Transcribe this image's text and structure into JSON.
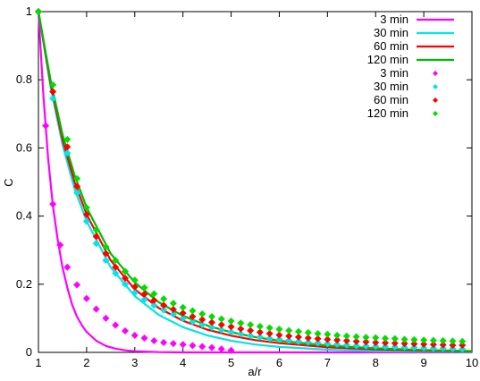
{
  "chart_data": {
    "type": "line",
    "xlabel": "a/r",
    "ylabel": "C",
    "xlim": [
      1,
      10
    ],
    "ylim": [
      0,
      1
    ],
    "x_ticks": [
      1,
      2,
      3,
      4,
      5,
      6,
      7,
      8,
      9,
      10
    ],
    "y_ticks": [
      0,
      0.2,
      0.4,
      0.6,
      0.8,
      1
    ],
    "x_tick_labels": [
      "1",
      "2",
      "3",
      "4",
      "5",
      "6",
      "7",
      "8",
      "9",
      "10"
    ],
    "y_tick_labels": [
      "0",
      "0.2",
      "0.4",
      "0.6",
      "0.8",
      "1"
    ],
    "legend_position": "top-right",
    "line_series": [
      {
        "name": "3 min",
        "color": "#ff00ff",
        "x": [
          1,
          1.1,
          1.2,
          1.3,
          1.4,
          1.5,
          1.6,
          1.7,
          1.8,
          1.9,
          2.0,
          2.2,
          2.4,
          2.6,
          2.8,
          3.0,
          3.5,
          4.0,
          5.0,
          6.0,
          8.0,
          10.0
        ],
        "y": [
          1.0,
          0.76,
          0.57,
          0.43,
          0.33,
          0.25,
          0.19,
          0.14,
          0.105,
          0.08,
          0.06,
          0.034,
          0.019,
          0.011,
          0.006,
          0.0035,
          0.0007,
          0.0001,
          0,
          0,
          0,
          0
        ]
      },
      {
        "name": "30 min",
        "color": "#00e5e5",
        "x": [
          1,
          1.25,
          1.5,
          1.75,
          2.0,
          2.5,
          3.0,
          3.5,
          4.0,
          4.5,
          5.0,
          5.5,
          6.0,
          7.0,
          8.0,
          9.0,
          10.0
        ],
        "y": [
          1.0,
          0.78,
          0.61,
          0.48,
          0.385,
          0.25,
          0.165,
          0.11,
          0.074,
          0.05,
          0.034,
          0.023,
          0.016,
          0.008,
          0.004,
          0.002,
          0.001
        ]
      },
      {
        "name": "60 min",
        "color": "#ff0000",
        "x": [
          1,
          1.25,
          1.5,
          1.75,
          2.0,
          2.5,
          3.0,
          3.5,
          4.0,
          4.5,
          5.0,
          5.5,
          6.0,
          7.0,
          8.0,
          9.0,
          10.0
        ],
        "y": [
          1.0,
          0.79,
          0.625,
          0.5,
          0.405,
          0.27,
          0.185,
          0.13,
          0.093,
          0.067,
          0.049,
          0.036,
          0.027,
          0.015,
          0.009,
          0.005,
          0.003
        ]
      },
      {
        "name": "120 min",
        "color": "#00bb00",
        "x": [
          1,
          1.25,
          1.5,
          1.75,
          2.0,
          2.5,
          3.0,
          3.5,
          4.0,
          4.5,
          5.0,
          5.5,
          6.0,
          7.0,
          8.0,
          9.0,
          10.0
        ],
        "y": [
          1.0,
          0.8,
          0.64,
          0.52,
          0.425,
          0.29,
          0.205,
          0.147,
          0.107,
          0.079,
          0.059,
          0.045,
          0.034,
          0.02,
          0.012,
          0.007,
          0.004
        ]
      }
    ],
    "point_series": [
      {
        "name": "3 min",
        "color": "#ff00ff",
        "x": [
          1.0,
          1.15,
          1.3,
          1.45,
          1.6,
          1.8,
          2.0,
          2.2,
          2.4,
          2.6,
          2.8,
          3.0,
          3.2,
          3.4,
          3.6,
          3.8,
          4.0,
          4.2,
          4.4,
          4.6,
          4.8,
          5.0
        ],
        "y": [
          1.0,
          0.665,
          0.435,
          0.315,
          0.25,
          0.198,
          0.158,
          0.127,
          0.1,
          0.08,
          0.063,
          0.05,
          0.042,
          0.034,
          0.029,
          0.026,
          0.023,
          0.02,
          0.017,
          0.014,
          0.01,
          0.006
        ]
      },
      {
        "name": "30 min",
        "color": "#00e5e5",
        "x": [
          1.0,
          1.3,
          1.6,
          1.8,
          2.0,
          2.2,
          2.4,
          2.6,
          2.8,
          3.0,
          3.2,
          3.4,
          3.6,
          3.8,
          4.0,
          4.2,
          4.4,
          4.6,
          4.8,
          5.0,
          5.2,
          5.4,
          5.6,
          5.8,
          6.0,
          6.2,
          6.4,
          6.6,
          6.8,
          7.0,
          7.2,
          7.4,
          7.6,
          7.8,
          8.0,
          8.2,
          8.4,
          8.6,
          8.8,
          9.0,
          9.2,
          9.4,
          9.6,
          9.8
        ],
        "y": [
          1.0,
          0.745,
          0.585,
          0.468,
          0.385,
          0.32,
          0.27,
          0.232,
          0.2,
          0.175,
          0.155,
          0.138,
          0.124,
          0.112,
          0.1,
          0.09,
          0.081,
          0.073,
          0.066,
          0.06,
          0.054,
          0.049,
          0.045,
          0.041,
          0.038,
          0.035,
          0.032,
          0.03,
          0.028,
          0.026,
          0.024,
          0.022,
          0.02,
          0.019,
          0.018,
          0.017,
          0.016,
          0.015,
          0.014,
          0.013,
          0.012,
          0.012,
          0.011,
          0.01
        ]
      },
      {
        "name": "60 min",
        "color": "#ff0000",
        "x": [
          1.0,
          1.3,
          1.6,
          1.8,
          2.0,
          2.2,
          2.4,
          2.6,
          2.8,
          3.0,
          3.2,
          3.4,
          3.6,
          3.8,
          4.0,
          4.2,
          4.4,
          4.6,
          4.8,
          5.0,
          5.2,
          5.4,
          5.6,
          5.8,
          6.0,
          6.2,
          6.4,
          6.6,
          6.8,
          7.0,
          7.2,
          7.4,
          7.6,
          7.8,
          8.0,
          8.2,
          8.4,
          8.6,
          8.8,
          9.0,
          9.2,
          9.4,
          9.6,
          9.8
        ],
        "y": [
          1.0,
          0.765,
          0.603,
          0.487,
          0.405,
          0.34,
          0.29,
          0.25,
          0.218,
          0.192,
          0.171,
          0.153,
          0.138,
          0.126,
          0.115,
          0.105,
          0.096,
          0.088,
          0.081,
          0.075,
          0.069,
          0.064,
          0.059,
          0.055,
          0.051,
          0.048,
          0.045,
          0.042,
          0.04,
          0.038,
          0.036,
          0.034,
          0.032,
          0.031,
          0.029,
          0.028,
          0.027,
          0.026,
          0.025,
          0.024,
          0.023,
          0.022,
          0.021,
          0.021
        ]
      },
      {
        "name": "120 min",
        "color": "#00dd00",
        "x": [
          1.0,
          1.3,
          1.6,
          1.8,
          2.0,
          2.2,
          2.4,
          2.6,
          2.8,
          3.0,
          3.2,
          3.4,
          3.6,
          3.8,
          4.0,
          4.2,
          4.4,
          4.6,
          4.8,
          5.0,
          5.2,
          5.4,
          5.6,
          5.8,
          6.0,
          6.2,
          6.4,
          6.6,
          6.8,
          7.0,
          7.2,
          7.4,
          7.6,
          7.8,
          8.0,
          8.2,
          8.4,
          8.6,
          8.8,
          9.0,
          9.2,
          9.4,
          9.6,
          9.8
        ],
        "y": [
          1.0,
          0.785,
          0.625,
          0.51,
          0.425,
          0.36,
          0.31,
          0.27,
          0.238,
          0.212,
          0.19,
          0.172,
          0.157,
          0.144,
          0.132,
          0.122,
          0.113,
          0.105,
          0.098,
          0.092,
          0.086,
          0.081,
          0.076,
          0.072,
          0.068,
          0.064,
          0.061,
          0.058,
          0.055,
          0.053,
          0.05,
          0.048,
          0.046,
          0.044,
          0.043,
          0.041,
          0.04,
          0.038,
          0.037,
          0.036,
          0.035,
          0.034,
          0.033,
          0.032
        ]
      }
    ]
  }
}
